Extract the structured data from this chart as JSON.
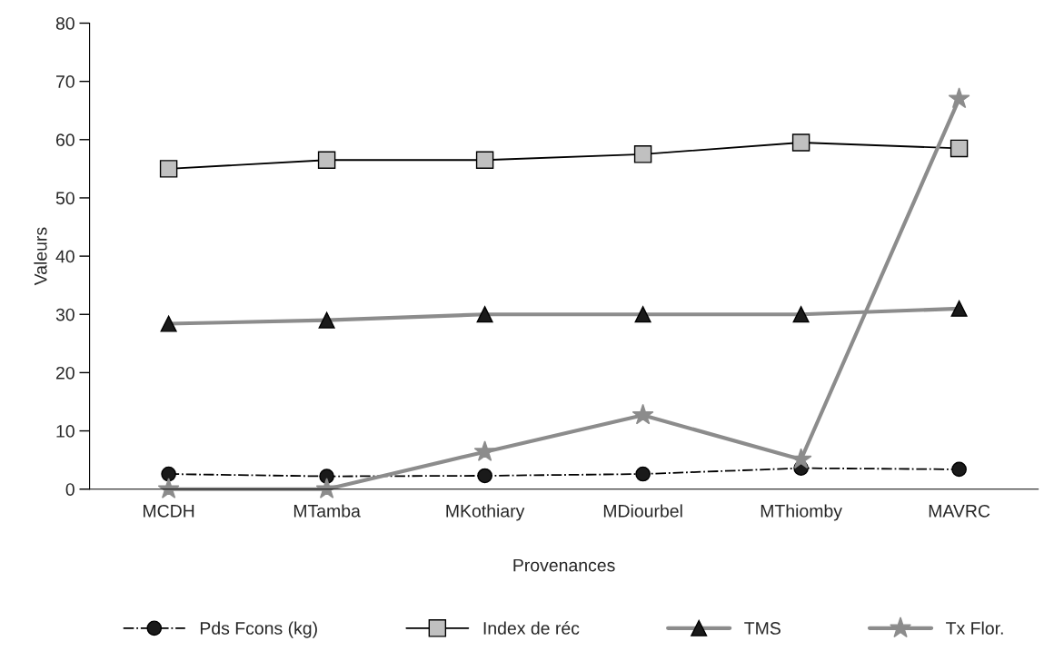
{
  "chart_data": {
    "type": "line",
    "xlabel": "Provenances",
    "ylabel": "Valeurs",
    "categories": [
      "MCDH",
      "MTamba",
      "MKothiary",
      "MDiourbel",
      "MThiomby",
      "MAVRC"
    ],
    "series": [
      {
        "name": "Pds Fcons (kg)",
        "color": "#000000",
        "marker": "circle",
        "line_style": "dashdot",
        "values": [
          2.6,
          2.2,
          2.3,
          2.6,
          3.6,
          3.4
        ]
      },
      {
        "name": "Index de réc",
        "color": "#000000",
        "marker": "square",
        "line_style": "solid",
        "values": [
          55,
          56.5,
          56.5,
          57.5,
          59.5,
          58.5
        ]
      },
      {
        "name": "TMS",
        "color": "#8c8c8c",
        "marker": "triangle",
        "line_style": "solid",
        "values": [
          28.4,
          29,
          30,
          30,
          30,
          31
        ]
      },
      {
        "name": "Tx Flor.",
        "color": "#8c8c8c",
        "marker": "star",
        "line_style": "solid",
        "values": [
          0,
          0,
          6.4,
          12.7,
          5.1,
          67
        ]
      }
    ],
    "ylim": [
      0,
      80
    ],
    "yticks": [
      0,
      10,
      20,
      30,
      40,
      50,
      60,
      70,
      80
    ],
    "grid": false,
    "legend": "bottom"
  }
}
